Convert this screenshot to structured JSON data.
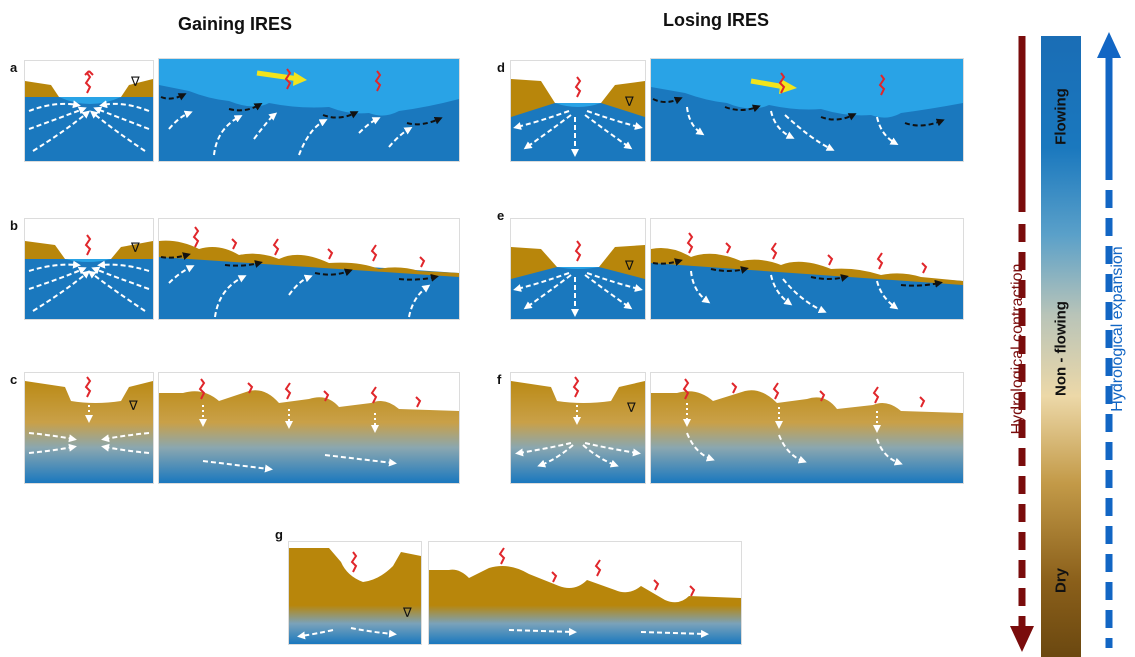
{
  "headings": {
    "gaining": "Gaining  IRES",
    "losing": "Losing  IRES"
  },
  "panel_labels": [
    "a",
    "b",
    "c",
    "d",
    "e",
    "f",
    "g"
  ],
  "water_table_symbol": "∇",
  "side_labels": {
    "contraction": "Hydrological contraction",
    "expansion": "Hydrological expansion"
  },
  "status_bar": {
    "flowing": "Flowing",
    "non_flowing": "Non - flowing",
    "dry": "Dry"
  },
  "colors": {
    "sediment": "#b8860b",
    "groundwater": "#1a78be",
    "surface_water": "#29a3e6",
    "flow_arrow": "#f2e41c",
    "contraction_arrow": "#7a0c0c",
    "expansion_arrow": "#1266c4",
    "organism": "#e0262b"
  }
}
